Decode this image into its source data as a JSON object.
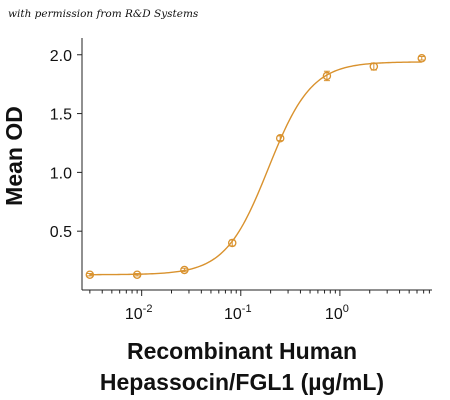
{
  "watermark": "with permission from R&D Systems",
  "chart_data": {
    "type": "scatter",
    "title": "",
    "xlabel_line1": "Recombinant Human",
    "xlabel_line2": "Hepassocin/FGL1 (µg/mL)",
    "ylabel": "Mean OD",
    "xscale": "log",
    "xlim": [
      0.0025,
      8.5
    ],
    "ylim": [
      0,
      2.1
    ],
    "yticks": [
      0.5,
      1.0,
      1.5,
      2.0
    ],
    "ytick_labels": [
      "0.5",
      "1.0",
      "1.5",
      "2.0"
    ],
    "xtick_major": [
      0.01,
      0.1,
      1
    ],
    "xtick_labels": [
      {
        "base": "10",
        "exp": "-2"
      },
      {
        "base": "10",
        "exp": "-1"
      },
      {
        "base": "10",
        "exp": "0"
      }
    ],
    "grid": false,
    "color": "#d9922e",
    "series": [
      {
        "x": [
          0.003,
          0.009,
          0.027,
          0.082,
          0.25,
          0.74,
          2.2,
          6.7
        ],
        "y": [
          0.13,
          0.13,
          0.17,
          0.4,
          1.29,
          1.82,
          1.9,
          1.97
        ],
        "err": [
          0.01,
          0.01,
          0.015,
          0.025,
          0.02,
          0.04,
          0.03,
          0.015
        ]
      }
    ],
    "fit": {
      "bottom": 0.13,
      "top": 1.94,
      "ec50": 0.19,
      "hill": 2.0
    }
  }
}
